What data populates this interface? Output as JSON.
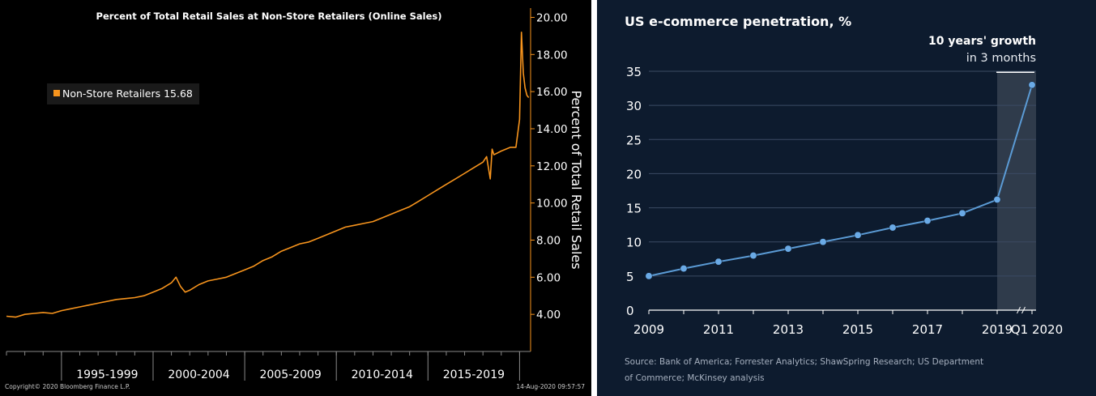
{
  "left_chart": {
    "title": "Percent of Total Retail Sales at Non-Store Retailers (Online Sales)",
    "legend_label": "Non-Store Retailers 15.68",
    "ylabel": "Percent of Total Retail Sales",
    "copyright": "Copyright© 2020 Bloomberg Finance L.P.",
    "timestamp": "14-Aug-2020 09:57:57",
    "colors": {
      "background": "#000000",
      "line": "#f7941d",
      "text": "#ffffff",
      "axis": "#f7941d"
    }
  },
  "right_chart": {
    "title": "US e-commerce penetration, %",
    "annotation_bold": "10 years' growth",
    "annotation_regular": "in 3 months",
    "source": "Source: Bank of America; Forrester Analytics; ShawSpring Research; US Department of Commerce; McKinsey analysis",
    "colors": {
      "background": "#0d1b2e",
      "line": "#5b9bd5",
      "text": "#ffffff",
      "muted": "#a6b0bf"
    }
  },
  "chart_data": [
    {
      "type": "line",
      "title": "Percent of Total Retail Sales at Non-Store Retailers (Online Sales)",
      "xlabel": "",
      "ylabel": "Percent of Total Retail Sales",
      "x_tick_labels": [
        "1995-1999",
        "2000-2004",
        "2005-2009",
        "2010-2014",
        "2015-2019"
      ],
      "y_ticks": [
        "4.00",
        "6.00",
        "8.00",
        "10.00",
        "12.00",
        "14.00",
        "16.00",
        "18.00",
        "20.00"
      ],
      "ylim": [
        2,
        20.5
      ],
      "xlim": [
        1992.0,
        2020.6
      ],
      "y_axis_side": "right",
      "grid": false,
      "legend": {
        "placement": "top-left",
        "entries": [
          "Non-Store Retailers 15.68"
        ]
      },
      "series": [
        {
          "name": "Non-Store Retailers",
          "x": [
            1992.0,
            1992.5,
            1993.0,
            1993.5,
            1994.0,
            1994.5,
            1995.0,
            1995.5,
            1996.0,
            1996.5,
            1997.0,
            1997.5,
            1998.0,
            1998.5,
            1999.0,
            1999.5,
            2000.0,
            2000.5,
            2001.0,
            2001.25,
            2001.5,
            2001.75,
            2002.0,
            2002.5,
            2003.0,
            2003.5,
            2004.0,
            2004.5,
            2005.0,
            2005.5,
            2006.0,
            2006.5,
            2007.0,
            2007.5,
            2008.0,
            2008.5,
            2009.0,
            2009.5,
            2010.0,
            2010.5,
            2011.0,
            2011.5,
            2012.0,
            2012.5,
            2013.0,
            2013.5,
            2014.0,
            2014.5,
            2015.0,
            2015.5,
            2016.0,
            2016.5,
            2017.0,
            2017.5,
            2018.0,
            2018.2,
            2018.4,
            2018.5,
            2018.6,
            2019.0,
            2019.5,
            2019.8,
            2020.0,
            2020.1,
            2020.2,
            2020.3,
            2020.4,
            2020.5
          ],
          "values": [
            3.9,
            3.85,
            4.0,
            4.05,
            4.1,
            4.05,
            4.2,
            4.3,
            4.4,
            4.5,
            4.6,
            4.7,
            4.8,
            4.85,
            4.9,
            5.0,
            5.2,
            5.4,
            5.7,
            6.0,
            5.5,
            5.2,
            5.3,
            5.6,
            5.8,
            5.9,
            6.0,
            6.2,
            6.4,
            6.6,
            6.9,
            7.1,
            7.4,
            7.6,
            7.8,
            7.9,
            8.1,
            8.3,
            8.5,
            8.7,
            8.8,
            8.9,
            9.0,
            9.2,
            9.4,
            9.6,
            9.8,
            10.1,
            10.4,
            10.7,
            11.0,
            11.3,
            11.6,
            11.9,
            12.2,
            12.5,
            11.3,
            12.9,
            12.6,
            12.8,
            13.0,
            13.0,
            14.5,
            19.2,
            17.0,
            16.2,
            15.8,
            15.68
          ]
        }
      ]
    },
    {
      "type": "line",
      "title": "US e-commerce penetration, %",
      "xlabel": "",
      "ylabel": "",
      "categories": [
        "2009",
        "2010",
        "2011",
        "2012",
        "2013",
        "2014",
        "2015",
        "2016",
        "2017",
        "2018",
        "2019",
        "Q1 2020"
      ],
      "x_tick_labels": [
        "2009",
        "2011",
        "2013",
        "2015",
        "2017",
        "2019",
        "Q1 2020"
      ],
      "y_ticks": [
        "0",
        "5",
        "10",
        "15",
        "20",
        "25",
        "30",
        "35"
      ],
      "ylim": [
        0,
        35
      ],
      "grid": true,
      "axis_break": "between 2019 and Q1 2020",
      "highlight_region": "2019 to Q1 2020",
      "annotation": "10 years' growth in 3 months",
      "series": [
        {
          "values": [
            5.0,
            6.1,
            7.1,
            8.0,
            9.0,
            10.0,
            11.0,
            12.1,
            13.1,
            14.2,
            16.2,
            33.0
          ]
        }
      ]
    }
  ]
}
